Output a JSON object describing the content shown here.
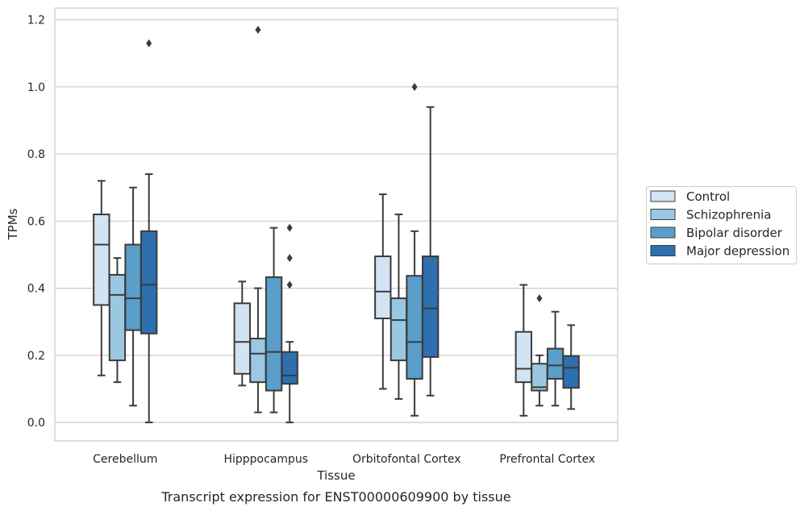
{
  "chart_data": {
    "type": "box",
    "xlabel": "Tissue",
    "ylabel": "TPMs",
    "caption": "Transcript expression for ENST00000609900 by tissue",
    "ylim": [
      -0.055,
      1.235
    ],
    "yticks": [
      "0.0",
      "0.2",
      "0.4",
      "0.6",
      "0.8",
      "1.0",
      "1.2"
    ],
    "ytick_values": [
      0.0,
      0.2,
      0.4,
      0.6,
      0.8,
      1.0,
      1.2
    ],
    "grid": "horizontal",
    "legend_position": "right",
    "categories": [
      "Cerebellum",
      "Hipppocampus",
      "Orbitofontal Cortex",
      "Prefrontal Cortex"
    ],
    "series": [
      {
        "name": "Control",
        "color": "#d2e3f3",
        "boxes": [
          {
            "whislo": 0.14,
            "q1": 0.35,
            "med": 0.53,
            "q3": 0.62,
            "whishi": 0.72,
            "fliers": []
          },
          {
            "whislo": 0.11,
            "q1": 0.145,
            "med": 0.24,
            "q3": 0.355,
            "whishi": 0.42,
            "fliers": []
          },
          {
            "whislo": 0.1,
            "q1": 0.31,
            "med": 0.39,
            "q3": 0.495,
            "whishi": 0.68,
            "fliers": []
          },
          {
            "whislo": 0.02,
            "q1": 0.12,
            "med": 0.16,
            "q3": 0.27,
            "whishi": 0.41,
            "fliers": []
          }
        ]
      },
      {
        "name": "Schizophrenia",
        "color": "#9ac8e0",
        "boxes": [
          {
            "whislo": 0.12,
            "q1": 0.185,
            "med": 0.38,
            "q3": 0.44,
            "whishi": 0.49,
            "fliers": []
          },
          {
            "whislo": 0.03,
            "q1": 0.12,
            "med": 0.205,
            "q3": 0.25,
            "whishi": 0.4,
            "fliers": [
              1.17
            ]
          },
          {
            "whislo": 0.07,
            "q1": 0.185,
            "med": 0.305,
            "q3": 0.37,
            "whishi": 0.62,
            "fliers": []
          },
          {
            "whislo": 0.05,
            "q1": 0.095,
            "med": 0.105,
            "q3": 0.175,
            "whishi": 0.2,
            "fliers": [
              0.37
            ]
          }
        ]
      },
      {
        "name": "Bipolar disorder",
        "color": "#5a9ec9",
        "boxes": [
          {
            "whislo": 0.05,
            "q1": 0.275,
            "med": 0.37,
            "q3": 0.53,
            "whishi": 0.7,
            "fliers": []
          },
          {
            "whislo": 0.03,
            "q1": 0.095,
            "med": 0.21,
            "q3": 0.433,
            "whishi": 0.58,
            "fliers": []
          },
          {
            "whislo": 0.02,
            "q1": 0.13,
            "med": 0.24,
            "q3": 0.437,
            "whishi": 0.57,
            "fliers": [
              1.0
            ]
          },
          {
            "whislo": 0.05,
            "q1": 0.13,
            "med": 0.17,
            "q3": 0.22,
            "whishi": 0.33,
            "fliers": []
          }
        ]
      },
      {
        "name": "Major depression",
        "color": "#2d6faf",
        "boxes": [
          {
            "whislo": 0.0,
            "q1": 0.265,
            "med": 0.41,
            "q3": 0.57,
            "whishi": 0.74,
            "fliers": [
              1.13
            ]
          },
          {
            "whislo": 0.0,
            "q1": 0.115,
            "med": 0.14,
            "q3": 0.21,
            "whishi": 0.24,
            "fliers": [
              0.41,
              0.49,
              0.58
            ]
          },
          {
            "whislo": 0.08,
            "q1": 0.195,
            "med": 0.34,
            "q3": 0.495,
            "whishi": 0.94,
            "fliers": []
          },
          {
            "whislo": 0.04,
            "q1": 0.103,
            "med": 0.163,
            "q3": 0.198,
            "whishi": 0.29,
            "fliers": []
          }
        ]
      }
    ]
  }
}
